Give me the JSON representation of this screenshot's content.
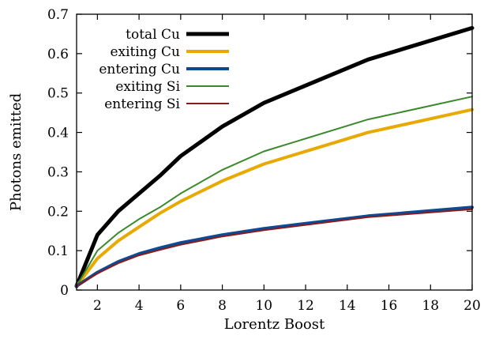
{
  "chart_data": {
    "type": "line",
    "title": "",
    "xlabel": "Lorentz Boost",
    "ylabel": "Photons emitted",
    "xlim": [
      1,
      20
    ],
    "ylim": [
      0,
      0.7
    ],
    "xticks": [
      2,
      4,
      6,
      8,
      10,
      12,
      14,
      16,
      18,
      20
    ],
    "yticks": [
      0,
      0.1,
      0.2,
      0.3,
      0.4,
      0.5,
      0.6,
      0.7
    ],
    "xtick_labels": [
      "2",
      "4",
      "6",
      "8",
      "10",
      "12",
      "14",
      "16",
      "18",
      "20"
    ],
    "ytick_labels": [
      "0",
      "0.1",
      "0.2",
      "0.3",
      "0.4",
      "0.5",
      "0.6",
      "0.7"
    ],
    "grid": false,
    "legend_position": "top-left",
    "x": [
      1,
      2,
      3,
      4,
      5,
      6,
      8,
      10,
      15,
      20
    ],
    "series": [
      {
        "name": "total Cu",
        "color": "#000000",
        "width": 5,
        "values": [
          0.01,
          0.14,
          0.2,
          0.245,
          0.29,
          0.34,
          0.415,
          0.475,
          0.585,
          0.665
        ]
      },
      {
        "name": "exiting Cu",
        "color": "#e8a900",
        "width": 4,
        "values": [
          0.01,
          0.08,
          0.125,
          0.16,
          0.195,
          0.225,
          0.277,
          0.32,
          0.4,
          0.458
        ]
      },
      {
        "name": "entering Cu",
        "color": "#0d4a96",
        "width": 4,
        "values": [
          0.01,
          0.045,
          0.072,
          0.092,
          0.107,
          0.12,
          0.14,
          0.156,
          0.188,
          0.21
        ]
      },
      {
        "name": "exiting Si",
        "color": "#3a8a2a",
        "width": 2,
        "values": [
          0.01,
          0.1,
          0.145,
          0.18,
          0.21,
          0.245,
          0.305,
          0.352,
          0.433,
          0.491
        ]
      },
      {
        "name": "entering Si",
        "color": "#8b1a1a",
        "width": 2,
        "values": [
          0.01,
          0.042,
          0.068,
          0.088,
          0.102,
          0.115,
          0.136,
          0.152,
          0.185,
          0.205
        ]
      }
    ]
  }
}
